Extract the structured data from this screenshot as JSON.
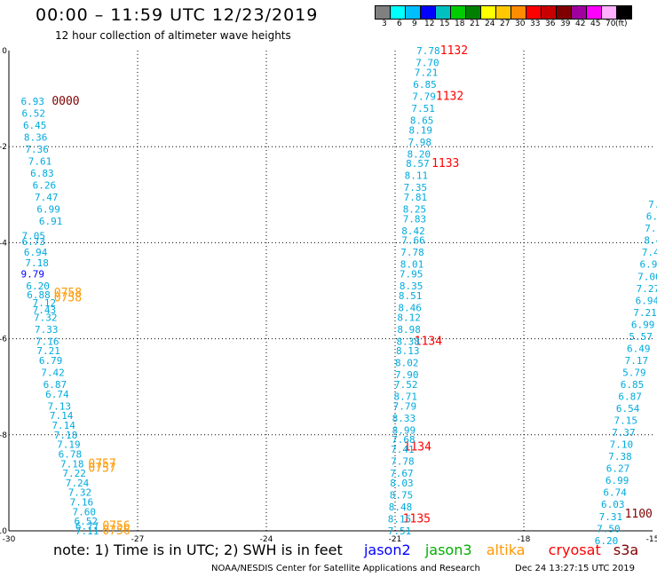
{
  "header": {
    "title": "00:00 – 11:59 UTC 12/23/2019",
    "subtitle": "12 hour collection of altimeter wave heights"
  },
  "colorbar": {
    "colors": [
      "#808080",
      "#00ffff",
      "#00bfff",
      "#0000ff",
      "#00c0c0",
      "#00cc00",
      "#008000",
      "#ffff00",
      "#ffc800",
      "#ff8c00",
      "#ff0000",
      "#c80000",
      "#800000",
      "#a000a0",
      "#ff00ff",
      "#ffb0ff",
      "#000000"
    ],
    "labels": [
      "3",
      "6",
      "9",
      "12",
      "15",
      "18",
      "21",
      "24",
      "27",
      "30",
      "33",
      "36",
      "39",
      "42",
      "45",
      "70",
      "(ft)"
    ]
  },
  "footer": {
    "note": "note:  1) Time is in UTC;  2) SWH is in feet",
    "legend": [
      {
        "name": "jason2",
        "color": "#0000ff"
      },
      {
        "name": "jason3",
        "color": "#00b000"
      },
      {
        "name": "altika",
        "color": "#ff9900"
      },
      {
        "name": "cryosat",
        "color": "#ff0000"
      },
      {
        "name": "s3a",
        "color": "#800000"
      }
    ],
    "credit": "NOAA/NESDIS Center for Satellite Applications and Research",
    "timestamp": "Dec 24 13:27:15 UTC 2019"
  },
  "chart_data": {
    "type": "scatter",
    "xlim": [
      -30,
      -15
    ],
    "ylim": [
      -10,
      0
    ],
    "x_ticks": [
      "-30",
      "-27",
      "-24",
      "-21",
      "-18",
      "-15"
    ],
    "y_ticks": [
      "0",
      "-2",
      "-4",
      "-6",
      "-8",
      "-10"
    ],
    "grid": true,
    "series": [
      {
        "name": "jason2",
        "values": [
          {
            "x": -29.72,
            "y": -4.65,
            "v": "9.79"
          }
        ]
      },
      {
        "name": "altika",
        "values": [
          {
            "x": -28.95,
            "y": -5.05,
            "v": "0758"
          },
          {
            "x": -28.95,
            "y": -5.15,
            "v": "0758"
          },
          {
            "x": -28.15,
            "y": -8.6,
            "v": "0757"
          },
          {
            "x": -28.15,
            "y": -8.7,
            "v": "0757"
          },
          {
            "x": -27.82,
            "y": -9.9,
            "v": "0756"
          },
          {
            "x": -27.82,
            "y": -10.0,
            "v": "0756"
          }
        ]
      },
      {
        "name": "cryosat",
        "values": [
          {
            "x": -19.95,
            "y": 0.0,
            "v": "1132"
          },
          {
            "x": -20.05,
            "y": -0.95,
            "v": "1132"
          },
          {
            "x": -20.15,
            "y": -2.35,
            "v": "1133"
          },
          {
            "x": -20.55,
            "y": -6.05,
            "v": "1134"
          },
          {
            "x": -20.8,
            "y": -8.25,
            "v": "1134"
          },
          {
            "x": -20.82,
            "y": -9.75,
            "v": "1135"
          }
        ]
      },
      {
        "name": "s3a",
        "values": [
          {
            "x": -29.0,
            "y": -1.05,
            "v": "0000"
          },
          {
            "x": -15.65,
            "y": -9.65,
            "v": "1100"
          }
        ]
      },
      {
        "name": "swh_ft",
        "values": [
          {
            "x": -29.72,
            "y": -1.05,
            "v": "6.93"
          },
          {
            "x": -29.7,
            "y": -1.3,
            "v": "6.52"
          },
          {
            "x": -29.67,
            "y": -1.55,
            "v": "6.45"
          },
          {
            "x": -29.65,
            "y": -1.8,
            "v": "8.36"
          },
          {
            "x": -29.62,
            "y": -2.05,
            "v": "7.36"
          },
          {
            "x": -29.55,
            "y": -2.3,
            "v": "7.61"
          },
          {
            "x": -29.5,
            "y": -2.55,
            "v": "6.83"
          },
          {
            "x": -29.45,
            "y": -2.8,
            "v": "6.26"
          },
          {
            "x": -29.4,
            "y": -3.05,
            "v": "7.47"
          },
          {
            "x": -29.35,
            "y": -3.3,
            "v": "6.99"
          },
          {
            "x": -29.3,
            "y": -3.55,
            "v": "6.91"
          },
          {
            "x": -29.7,
            "y": -3.85,
            "v": "7.05"
          },
          {
            "x": -29.7,
            "y": -3.97,
            "v": "6.73"
          },
          {
            "x": -29.65,
            "y": -4.2,
            "v": "6.94"
          },
          {
            "x": -29.62,
            "y": -4.42,
            "v": "7.18"
          },
          {
            "x": -29.6,
            "y": -4.9,
            "v": "6.20"
          },
          {
            "x": -29.58,
            "y": -5.08,
            "v": "6.88"
          },
          {
            "x": -29.45,
            "y": -5.25,
            "v": "7.12"
          },
          {
            "x": -29.45,
            "y": -5.4,
            "v": "7.43"
          },
          {
            "x": -29.42,
            "y": -5.55,
            "v": "7.32"
          },
          {
            "x": -29.4,
            "y": -5.8,
            "v": "7.33"
          },
          {
            "x": -29.38,
            "y": -6.05,
            "v": "7.16"
          },
          {
            "x": -29.35,
            "y": -6.25,
            "v": "7.21"
          },
          {
            "x": -29.3,
            "y": -6.45,
            "v": "6.79"
          },
          {
            "x": -29.25,
            "y": -6.7,
            "v": "7.42"
          },
          {
            "x": -29.2,
            "y": -6.95,
            "v": "6.87"
          },
          {
            "x": -29.15,
            "y": -7.15,
            "v": "6.74"
          },
          {
            "x": -29.1,
            "y": -7.4,
            "v": "7.13"
          },
          {
            "x": -29.05,
            "y": -7.6,
            "v": "7.14"
          },
          {
            "x": -29.0,
            "y": -7.8,
            "v": "7.14"
          },
          {
            "x": -28.95,
            "y": -8.0,
            "v": "7.18"
          },
          {
            "x": -28.88,
            "y": -8.2,
            "v": "7.19"
          },
          {
            "x": -28.85,
            "y": -8.4,
            "v": "6.78"
          },
          {
            "x": -28.8,
            "y": -8.6,
            "v": "7.18"
          },
          {
            "x": -28.75,
            "y": -8.8,
            "v": "7.22"
          },
          {
            "x": -28.68,
            "y": -9.0,
            "v": "7.24"
          },
          {
            "x": -28.62,
            "y": -9.2,
            "v": "7.32"
          },
          {
            "x": -28.58,
            "y": -9.4,
            "v": "7.16"
          },
          {
            "x": -28.52,
            "y": -9.6,
            "v": "7.60"
          },
          {
            "x": -28.48,
            "y": -9.8,
            "v": "6.52"
          },
          {
            "x": -28.45,
            "y": -9.9,
            "v": "6.77"
          },
          {
            "x": -28.45,
            "y": -10.0,
            "v": "7.11"
          },
          {
            "x": -20.5,
            "y": 0.0,
            "v": "7.78"
          },
          {
            "x": -20.52,
            "y": -0.25,
            "v": "7.70"
          },
          {
            "x": -20.55,
            "y": -0.45,
            "v": "7.21"
          },
          {
            "x": -20.58,
            "y": -0.7,
            "v": "6.85"
          },
          {
            "x": -20.6,
            "y": -0.95,
            "v": "7.79"
          },
          {
            "x": -20.62,
            "y": -1.2,
            "v": "7.51"
          },
          {
            "x": -20.65,
            "y": -1.45,
            "v": "8.65"
          },
          {
            "x": -20.68,
            "y": -1.65,
            "v": "8.19"
          },
          {
            "x": -20.7,
            "y": -1.9,
            "v": "7.98"
          },
          {
            "x": -20.72,
            "y": -2.15,
            "v": "8.20"
          },
          {
            "x": -20.75,
            "y": -2.35,
            "v": "8.57"
          },
          {
            "x": -20.78,
            "y": -2.6,
            "v": "8.11"
          },
          {
            "x": -20.8,
            "y": -2.85,
            "v": "7.35"
          },
          {
            "x": -20.8,
            "y": -3.05,
            "v": "7.81"
          },
          {
            "x": -20.82,
            "y": -3.3,
            "v": "8.25"
          },
          {
            "x": -20.82,
            "y": -3.5,
            "v": "7.83"
          },
          {
            "x": -20.85,
            "y": -3.75,
            "v": "8.42"
          },
          {
            "x": -20.85,
            "y": -3.95,
            "v": "7.66"
          },
          {
            "x": -20.87,
            "y": -4.2,
            "v": "7.78"
          },
          {
            "x": -20.88,
            "y": -4.45,
            "v": "8.01"
          },
          {
            "x": -20.9,
            "y": -4.65,
            "v": "7.95"
          },
          {
            "x": -20.9,
            "y": -4.9,
            "v": "8.35"
          },
          {
            "x": -20.92,
            "y": -5.1,
            "v": "8.51"
          },
          {
            "x": -20.93,
            "y": -5.35,
            "v": "8.46"
          },
          {
            "x": -20.95,
            "y": -5.55,
            "v": "8.12"
          },
          {
            "x": -20.95,
            "y": -5.8,
            "v": "8.98"
          },
          {
            "x": -20.97,
            "y": -6.05,
            "v": "8.38"
          },
          {
            "x": -20.98,
            "y": -6.25,
            "v": "8.13"
          },
          {
            "x": -21.0,
            "y": -6.5,
            "v": "8.02"
          },
          {
            "x": -21.0,
            "y": -6.75,
            "v": "7.90"
          },
          {
            "x": -21.02,
            "y": -6.95,
            "v": "7.52"
          },
          {
            "x": -21.03,
            "y": -7.2,
            "v": "8.71"
          },
          {
            "x": -21.05,
            "y": -7.4,
            "v": "7.79"
          },
          {
            "x": -21.07,
            "y": -7.65,
            "v": "8.33"
          },
          {
            "x": -21.07,
            "y": -7.9,
            "v": "8.99"
          },
          {
            "x": -21.08,
            "y": -8.1,
            "v": "7.68"
          },
          {
            "x": -21.1,
            "y": -8.3,
            "v": "7.41"
          },
          {
            "x": -21.1,
            "y": -8.55,
            "v": "7.78"
          },
          {
            "x": -21.12,
            "y": -8.8,
            "v": "7.67"
          },
          {
            "x": -21.12,
            "y": -9.0,
            "v": "8.03"
          },
          {
            "x": -21.13,
            "y": -9.25,
            "v": "8.75"
          },
          {
            "x": -21.15,
            "y": -9.5,
            "v": "8.48"
          },
          {
            "x": -21.17,
            "y": -9.75,
            "v": "8.15"
          },
          {
            "x": -21.17,
            "y": -10.0,
            "v": "7.51"
          },
          {
            "x": -15.1,
            "y": -3.2,
            "v": "7."
          },
          {
            "x": -15.15,
            "y": -3.45,
            "v": "6."
          },
          {
            "x": -15.18,
            "y": -3.7,
            "v": "7."
          },
          {
            "x": -15.2,
            "y": -3.95,
            "v": "8.4"
          },
          {
            "x": -15.25,
            "y": -4.2,
            "v": "7.4"
          },
          {
            "x": -15.3,
            "y": -4.45,
            "v": "6.94"
          },
          {
            "x": -15.35,
            "y": -4.7,
            "v": "7.00"
          },
          {
            "x": -15.38,
            "y": -4.95,
            "v": "7.27"
          },
          {
            "x": -15.4,
            "y": -5.2,
            "v": "6.94"
          },
          {
            "x": -15.45,
            "y": -5.45,
            "v": "7.21"
          },
          {
            "x": -15.5,
            "y": -5.7,
            "v": "6.99"
          },
          {
            "x": -15.55,
            "y": -5.95,
            "v": "5.57"
          },
          {
            "x": -15.6,
            "y": -6.2,
            "v": "6.49"
          },
          {
            "x": -15.65,
            "y": -6.45,
            "v": "7.17"
          },
          {
            "x": -15.7,
            "y": -6.7,
            "v": "5.79"
          },
          {
            "x": -15.75,
            "y": -6.95,
            "v": "6.85"
          },
          {
            "x": -15.8,
            "y": -7.2,
            "v": "6.87"
          },
          {
            "x": -15.85,
            "y": -7.45,
            "v": "6.54"
          },
          {
            "x": -15.9,
            "y": -7.7,
            "v": "7.15"
          },
          {
            "x": -15.95,
            "y": -7.95,
            "v": "7.37"
          },
          {
            "x": -16.0,
            "y": -8.2,
            "v": "7.10"
          },
          {
            "x": -16.03,
            "y": -8.45,
            "v": "7.38"
          },
          {
            "x": -16.08,
            "y": -8.7,
            "v": "6.27"
          },
          {
            "x": -16.1,
            "y": -8.95,
            "v": "6.99"
          },
          {
            "x": -16.15,
            "y": -9.2,
            "v": "6.74"
          },
          {
            "x": -16.2,
            "y": -9.45,
            "v": "6.03"
          },
          {
            "x": -16.25,
            "y": -9.7,
            "v": "7.31"
          },
          {
            "x": -16.3,
            "y": -9.95,
            "v": "7.50"
          },
          {
            "x": -16.35,
            "y": -10.2,
            "v": "6.20"
          }
        ]
      }
    ]
  }
}
